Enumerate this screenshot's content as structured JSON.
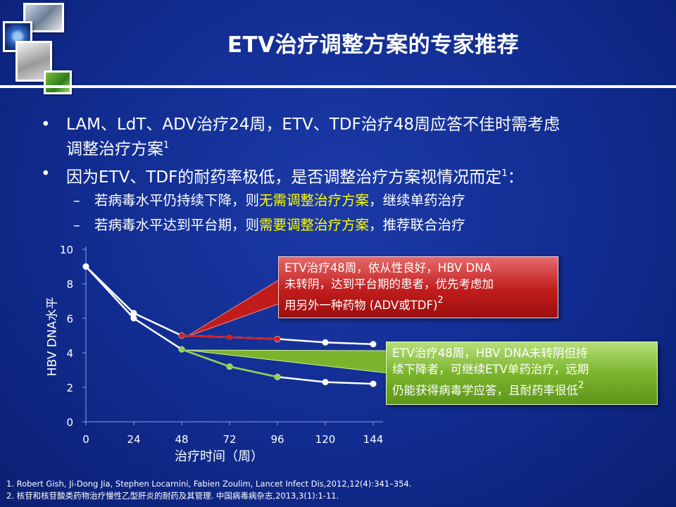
{
  "slide": {
    "title": "ETV治疗调整方案的专家推荐"
  },
  "bullets": [
    {
      "line1": "LAM、LdT、ADV治疗24周，ETV、TDF治疗48周应答不佳时需考虑",
      "line2": "调整治疗方案",
      "sup": "1"
    },
    {
      "text": "因为ETV、TDF的耐药率极低，是否调整治疗方案视情况而定",
      "sup": "1",
      "tail": "："
    }
  ],
  "sub_bullets": [
    {
      "before": "若病毒水平仍持续下降，则",
      "highlight": "无需调整治疗方案",
      "after": "，继续单药治疗"
    },
    {
      "before": "若病毒水平达到平台期，则",
      "highlight": "需要调整治疗方案",
      "after": "，推荐联合治疗"
    }
  ],
  "callouts": {
    "red": {
      "lines": [
        "ETV治疗48周，依从性良好，HBV  DNA",
        "未转阴，达到平台期的患者，优先考虑加",
        "用另外一种药物 (ADV或TDF)"
      ],
      "sup": "2"
    },
    "green": {
      "lines": [
        "ETV治疗48周，HBV  DNA未转阴但持",
        "续下降者，可继续ETV单药治疗，远期",
        "仍能获得病毒学应答，且耐药率很低"
      ],
      "sup": "2"
    }
  },
  "chart_data": {
    "type": "line",
    "ylabel": "HBV DNA水平",
    "xlabel": "治疗时间（周）",
    "x": [
      0,
      24,
      48,
      72,
      96,
      120,
      144
    ],
    "ylim": [
      0,
      10
    ],
    "yticks": [
      0,
      2,
      4,
      6,
      8,
      10
    ],
    "series": [
      {
        "x": [
          0,
          24,
          48,
          96,
          120,
          144
        ],
        "values": [
          9.0,
          6.3,
          5.0,
          4.8,
          4.6,
          4.5
        ],
        "color": "#ffffff"
      },
      {
        "x": [
          48,
          72,
          96
        ],
        "values": [
          5.0,
          4.9,
          4.8
        ],
        "color": "#d42020"
      },
      {
        "x": [
          0,
          24,
          48,
          72,
          96,
          120,
          144
        ],
        "values": [
          9.0,
          6.0,
          4.2,
          3.2,
          2.6,
          2.3,
          2.2
        ],
        "color": "#ffffff"
      },
      {
        "x": [
          48,
          72,
          96
        ],
        "values": [
          4.2,
          3.2,
          2.6
        ],
        "color": "#8fd24a"
      }
    ],
    "grid": false
  },
  "references": [
    "1.  Robert Gish, Ji-Dong Jia, Stephen Locarnini, Fabien Zoulim, Lancet Infect Dis,2012,12(4):341–354.",
    "2.  核苷和核苷酸类药物治疗慢性乙型肝炎的耐药及其管理. 中国病毒病杂志,2013,3(1):1-11."
  ]
}
